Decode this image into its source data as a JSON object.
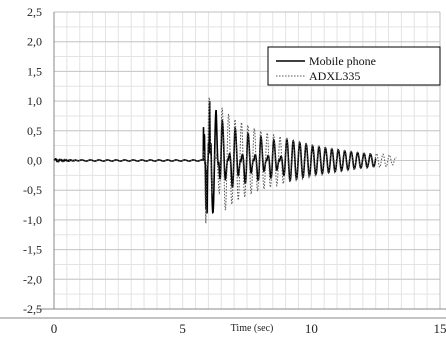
{
  "chart_data": {
    "type": "line",
    "title": "",
    "xlabel": "Time (sec)",
    "ylabel": "",
    "xlim": [
      0,
      15
    ],
    "ylim": [
      -2.5,
      2.5
    ],
    "x_ticks": [
      0,
      5,
      10,
      15
    ],
    "x_tick_labels": [
      "0",
      "5",
      "10",
      "15"
    ],
    "y_ticks": [
      2.5,
      2.0,
      1.5,
      1.0,
      0.5,
      0.0,
      -0.5,
      -1.0,
      -1.5,
      -2.0,
      -2.5
    ],
    "y_tick_labels": [
      "2,5",
      "2,0",
      "1,5",
      "1,0",
      "0,5",
      "0,0",
      "-0,5",
      "-1,0",
      "-1,5",
      "-2,0",
      "-2,5"
    ],
    "grid": true,
    "legend_position": "top-right",
    "series": [
      {
        "name": "Mobile phone",
        "style": "solid",
        "color": "#000000",
        "x": [
          0.0,
          0.1,
          0.2,
          0.3,
          0.4,
          0.5,
          0.6,
          0.7,
          0.8,
          0.9,
          1.0,
          1.5,
          2.0,
          3.0,
          4.0,
          5.0,
          5.5,
          5.7,
          5.75,
          5.8,
          5.85,
          5.9,
          5.95,
          6.0,
          6.05,
          6.1,
          6.3,
          6.5,
          7.0,
          7.5,
          8.0,
          8.5,
          9.0,
          10.0,
          11.0,
          12.0,
          12.5
        ],
        "y": [
          0.0,
          0.05,
          -0.05,
          0.04,
          -0.04,
          0.03,
          -0.03,
          0.02,
          -0.02,
          0.01,
          0.0,
          0.01,
          0.0,
          0.0,
          0.0,
          0.0,
          0.0,
          0.02,
          0.1,
          1.05,
          -1.3,
          1.0,
          -1.1,
          0.95,
          -1.0,
          0.9,
          0.85,
          -0.8,
          0.65,
          -0.55,
          0.48,
          -0.42,
          0.36,
          0.25,
          0.18,
          0.12,
          0.1
        ]
      },
      {
        "name": "ADXL335",
        "style": "dotted",
        "color": "#555555",
        "x": [
          0.0,
          0.5,
          1.0,
          2.0,
          3.0,
          4.0,
          5.0,
          5.5,
          5.8,
          5.9,
          6.0,
          6.5,
          7.0,
          8.0,
          9.0,
          10.0,
          11.0,
          12.0,
          13.0,
          13.3
        ],
        "y": [
          0.0,
          0.02,
          0.01,
          0.0,
          0.0,
          0.0,
          0.0,
          0.0,
          0.05,
          1.1,
          -1.2,
          0.9,
          0.7,
          0.5,
          0.38,
          0.28,
          0.2,
          0.14,
          0.1,
          0.05
        ]
      }
    ]
  }
}
